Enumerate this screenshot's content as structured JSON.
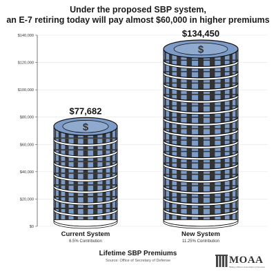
{
  "title": {
    "line1": "Under the proposed SBP system,",
    "line2": "an E-7 retiring today will pay almost $60,000 in higher premiums"
  },
  "footer": {
    "title": "Lifetime SBP Premiums",
    "source": "Source: Office of Secretary of Defense"
  },
  "logo": {
    "text": "MOAA",
    "tagline": "Military Officers Association of America"
  },
  "colors": {
    "coin_dark": "#333333",
    "coin_blue": "#7d9bc7",
    "coin_outline": "#111111",
    "axis": "#555555"
  },
  "icons": {
    "coin_symbol": "dollar-sign-icon"
  },
  "chart_data": {
    "type": "bar",
    "style": "stacked-coins",
    "categories": [
      "Current System",
      "New System"
    ],
    "sublabels": [
      "6.5% Contribution",
      "11.25% Contribution"
    ],
    "values": [
      77682,
      134450
    ],
    "value_labels": [
      "$77,682",
      "$134,450"
    ],
    "ylim": [
      0,
      140000
    ],
    "yticks": [
      0,
      20000,
      40000,
      60000,
      80000,
      100000,
      120000,
      140000
    ],
    "ytick_labels": [
      "$0",
      "$20,000",
      "$40,000",
      "$60,000",
      "$80,000",
      "$100,000",
      "$120,000",
      "$140,000"
    ],
    "grid": true,
    "legend": "none"
  }
}
